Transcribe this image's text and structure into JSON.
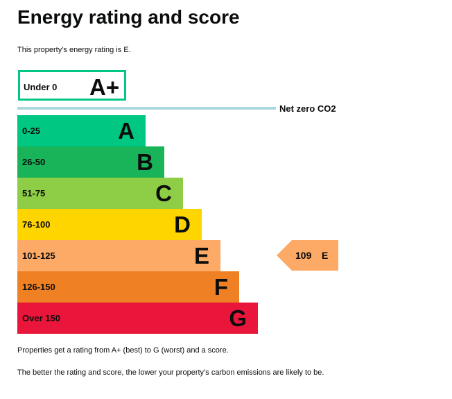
{
  "title": "Energy rating and score",
  "intro": "This property’s energy rating is E.",
  "aplus": {
    "range": "Under 0",
    "letter": "A+",
    "border_color": "#00c781"
  },
  "net_zero": {
    "label": "Net zero CO2",
    "line_color": "#aad8df"
  },
  "bands": [
    {
      "range": "0-25",
      "letter": "A",
      "color": "#00c781"
    },
    {
      "range": "26-50",
      "letter": "B",
      "color": "#19b459"
    },
    {
      "range": "51-75",
      "letter": "C",
      "color": "#8dce46"
    },
    {
      "range": "76-100",
      "letter": "D",
      "color": "#ffd500"
    },
    {
      "range": "101-125",
      "letter": "E",
      "color": "#fcaa65"
    },
    {
      "range": "126-150",
      "letter": "F",
      "color": "#ef8023"
    },
    {
      "range": "Over 150",
      "letter": "G",
      "color": "#e9153b"
    }
  ],
  "current": {
    "score": "109",
    "letter": "E",
    "color": "#fcaa65"
  },
  "footer": {
    "line1": "Properties get a rating from A+ (best) to G (worst) and a score.",
    "line2": "The better the rating and score, the lower your property’s carbon emissions are likely to be."
  }
}
